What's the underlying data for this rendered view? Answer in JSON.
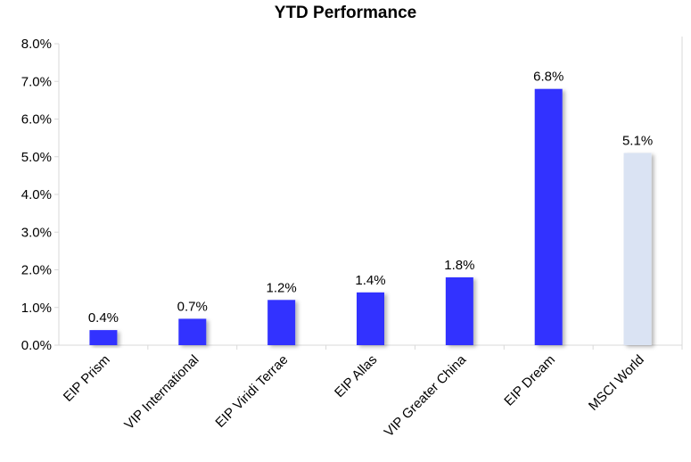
{
  "chart_data": {
    "type": "bar",
    "title": "YTD Performance",
    "categories": [
      "EIP Prism",
      "VIP International",
      "EIP Viridi Terrae",
      "EIP Allas",
      "VIP Greater China",
      "EIP Dream",
      "MSCI World"
    ],
    "values": [
      0.4,
      0.7,
      1.2,
      1.4,
      1.8,
      6.8,
      5.1
    ],
    "data_labels": [
      "0.4%",
      "0.7%",
      "1.2%",
      "1.4%",
      "1.8%",
      "6.8%",
      "5.1%"
    ],
    "bar_colors": [
      "#3333ff",
      "#3333ff",
      "#3333ff",
      "#3333ff",
      "#3333ff",
      "#3333ff",
      "#dae3f3"
    ],
    "ylim": [
      0,
      8
    ],
    "yticks": [
      "0.0%",
      "1.0%",
      "2.0%",
      "3.0%",
      "4.0%",
      "5.0%",
      "6.0%",
      "7.0%",
      "8.0%"
    ],
    "xlabel": "",
    "ylabel": "",
    "grid": false,
    "legend": "none"
  }
}
